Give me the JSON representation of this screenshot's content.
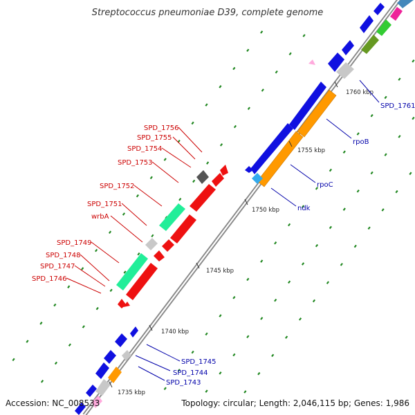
{
  "map": {
    "title": "Streptococcus pneumoniae D39, complete genome",
    "accession": "Accession: NC_008533",
    "summary": "Topology: circular; Length: 2,046,115 bp; Genes: 1,986"
  },
  "ticks": [
    {
      "label": "1735 kbp"
    },
    {
      "label": "1740 kbp"
    },
    {
      "label": "1745 kbp"
    },
    {
      "label": "1750 kbp"
    },
    {
      "label": "1755 kbp"
    },
    {
      "label": "1760 kbp"
    }
  ],
  "reverse_labels": [
    "SPD_1756",
    "SPD_1755",
    "SPD_1754",
    "SPD_1753",
    "SPD_1752",
    "SPD_1751",
    "wrbA",
    "SPD_1749",
    "SPD_1748",
    "SPD_1747",
    "SPD_1746"
  ],
  "forward_labels": [
    "SPD_1761",
    "rpoB",
    "rpoC",
    "ndk",
    "SPD_1745",
    "SPD_1744",
    "SPD_1743"
  ],
  "colors": {
    "backbone": "#999999",
    "forward_cds": "#1010e0",
    "reverse_cds": "#ee1111",
    "rpo": "#ff9900",
    "teal": "#22ee99",
    "grey": "#c8c8c8",
    "dark": "#555555",
    "olive": "#669922",
    "green": "#33cc33",
    "magenta": "#ee2299",
    "pink": "#ffaadd",
    "cyan": "#33aaee",
    "steel": "#4488bb",
    "dot": "#228822"
  }
}
